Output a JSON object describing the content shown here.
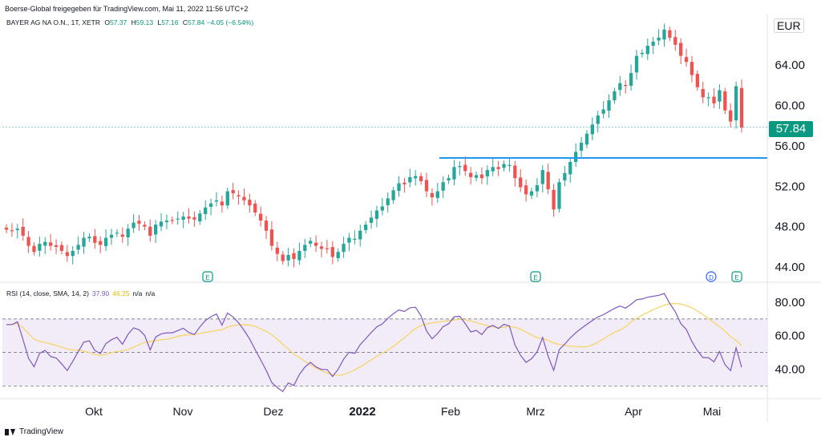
{
  "header": {
    "title": "Boerse-Global freigegeben für TradingView.com, Mai 11, 2022 11:56 UTC+2"
  },
  "legend": {
    "symbol": "BAYER AG NA O.N., 1T, XETR",
    "o_label": "O",
    "o": "57.37",
    "h_label": "H",
    "h": "59.13",
    "l_label": "L",
    "l": "57.16",
    "c_label": "C",
    "c": "57.84",
    "change": "−4.05 (−6.54%)"
  },
  "currency": "EUR",
  "last_price": "57.84",
  "rsi_legend": {
    "name": "RSI (14, close, SMA, 14, 2)",
    "rsi": "37.90",
    "sma": "46.25",
    "na1": "n/a",
    "na2": "n/a"
  },
  "footer": {
    "brand": "TradingView"
  },
  "colors": {
    "up": "#26a69a",
    "down": "#ef5350",
    "hline": "#2962ff",
    "rsi": "#7e57c2",
    "rsi_sma": "#f7d45f",
    "band": "#ede7f6"
  },
  "chart_data": [
    {
      "type": "candlestick",
      "ylim": [
        42.5,
        69
      ],
      "y_ticks": [
        "64.00",
        "60.00",
        "56.00",
        "52.00",
        "48.00",
        "44.00"
      ],
      "x_tick_labels": [
        "Okt",
        "Nov",
        "Dez",
        "2022",
        "Feb",
        "Mrz",
        "Apr",
        "Mai"
      ],
      "horizontal_line": 54.8,
      "event_markers": [
        "E",
        "E",
        "D",
        "E"
      ],
      "closes": [
        47.7,
        47.6,
        47.8,
        47.1,
        46.1,
        45.5,
        46.3,
        46.5,
        46.1,
        46.0,
        45.6,
        45.1,
        45.6,
        46.2,
        46.9,
        47.0,
        46.4,
        46.2,
        46.9,
        47.2,
        47.4,
        47.0,
        47.8,
        48.4,
        48.3,
        48.0,
        47.1,
        48.2,
        48.5,
        48.6,
        48.6,
        48.8,
        49.0,
        48.8,
        48.7,
        49.3,
        49.9,
        50.3,
        50.6,
        50.1,
        51.5,
        51.3,
        51.0,
        50.6,
        50.1,
        49.4,
        48.6,
        47.6,
        46.1,
        45.3,
        44.6,
        45.2,
        44.8,
        45.6,
        46.2,
        46.6,
        46.1,
        45.8,
        45.8,
        45.0,
        45.5,
        46.3,
        46.9,
        46.8,
        47.6,
        48.2,
        48.9,
        49.6,
        50.0,
        50.8,
        51.6,
        52.3,
        52.2,
        52.9,
        53.0,
        52.5,
        51.5,
        50.9,
        51.5,
        52.4,
        52.8,
        53.9,
        54.0,
        53.5,
        52.9,
        53.1,
        52.8,
        53.6,
        53.9,
        53.7,
        54.2,
        54.1,
        52.8,
        51.9,
        51.2,
        51.5,
        52.1,
        53.6,
        51.7,
        49.7,
        52.4,
        53.3,
        54.4,
        55.4,
        56.3,
        57.2,
        58.1,
        59.0,
        59.6,
        60.5,
        61.4,
        62.2,
        62.0,
        63.2,
        64.9,
        65.2,
        65.9,
        66.3,
        66.7,
        67.5,
        66.7,
        66.0,
        64.9,
        64.3,
        63.0,
        61.8,
        60.8,
        60.8,
        60.2,
        61.5,
        59.5,
        58.4,
        61.9,
        57.8
      ],
      "rsi_ylim": [
        23,
        90
      ],
      "rsi_y_ticks": [
        "80.00",
        "60.00",
        "40.00"
      ],
      "rsi_bands": [
        70,
        50,
        30
      ]
    }
  ]
}
